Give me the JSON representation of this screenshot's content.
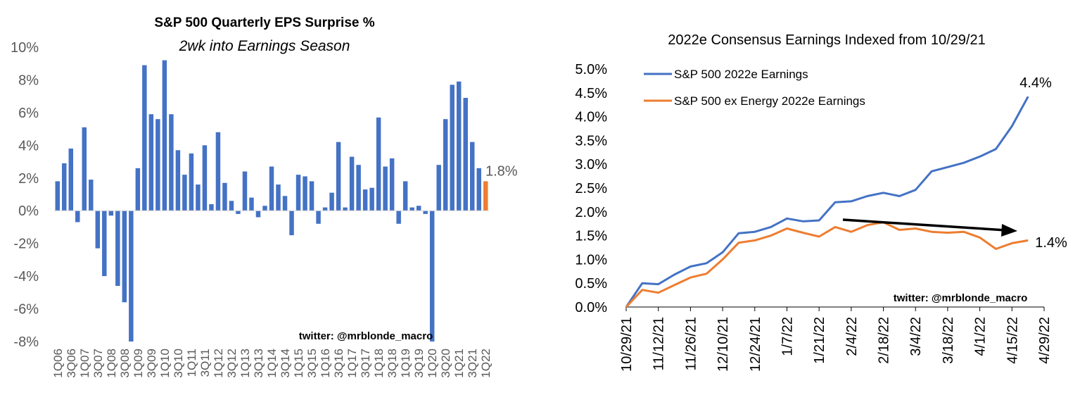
{
  "chart_data": [
    {
      "type": "bar",
      "title": "S&P 500 Quarterly EPS Surprise %",
      "subtitle": "2wk into Earnings Season",
      "watermark": "twitter: @mrblonde_macro",
      "ylim": [
        -8,
        10
      ],
      "yticks": [
        "10%",
        "8%",
        "6%",
        "4%",
        "2%",
        "0%",
        "-2%",
        "-4%",
        "-6%",
        "-8%"
      ],
      "categories": [
        "1Q06",
        "2Q06",
        "3Q06",
        "4Q06",
        "1Q07",
        "2Q07",
        "3Q07",
        "4Q07",
        "1Q08",
        "2Q08",
        "3Q08",
        "4Q08",
        "1Q09",
        "2Q09",
        "3Q09",
        "4Q09",
        "1Q10",
        "2Q10",
        "3Q10",
        "4Q10",
        "1Q11",
        "2Q11",
        "3Q11",
        "4Q11",
        "1Q12",
        "2Q12",
        "3Q12",
        "4Q12",
        "1Q13",
        "2Q13",
        "3Q13",
        "4Q13",
        "1Q14",
        "2Q14",
        "3Q14",
        "4Q14",
        "1Q15",
        "2Q15",
        "3Q15",
        "4Q15",
        "1Q16",
        "2Q16",
        "3Q16",
        "4Q16",
        "1Q17",
        "2Q17",
        "3Q17",
        "4Q17",
        "1Q18",
        "2Q18",
        "3Q18",
        "4Q18",
        "1Q19",
        "2Q19",
        "3Q19",
        "4Q19",
        "1Q20",
        "2Q20",
        "3Q20",
        "4Q20",
        "1Q21",
        "2Q21",
        "3Q21",
        "4Q21",
        "1Q22"
      ],
      "values": [
        1.8,
        2.9,
        3.8,
        -0.7,
        5.1,
        1.9,
        -2.3,
        -4.0,
        -0.3,
        -4.6,
        -5.6,
        -8.0,
        2.6,
        8.9,
        5.9,
        5.6,
        9.2,
        5.9,
        3.7,
        2.2,
        3.5,
        1.6,
        4.0,
        0.4,
        4.8,
        1.7,
        0.6,
        -0.2,
        2.4,
        0.8,
        -0.4,
        0.3,
        2.7,
        1.6,
        0.9,
        -1.5,
        2.2,
        2.1,
        1.8,
        -0.8,
        0.2,
        1.1,
        4.2,
        0.2,
        3.3,
        2.8,
        1.3,
        1.4,
        5.7,
        2.7,
        3.2,
        -0.8,
        1.8,
        0.2,
        0.3,
        -0.2,
        -8.0,
        2.8,
        5.6,
        7.7,
        7.9,
        6.9,
        4.2,
        2.6,
        1.8
      ],
      "colors": {
        "bar": "#4472C4",
        "highlight": "#ED7D31"
      },
      "last_label": "1.8%",
      "xtick_labels": [
        "1Q06",
        "3Q06",
        "1Q07",
        "3Q07",
        "1Q08",
        "3Q08",
        "1Q09",
        "3Q09",
        "1Q10",
        "3Q10",
        "1Q11",
        "3Q11",
        "1Q12",
        "3Q12",
        "1Q13",
        "3Q13",
        "1Q14",
        "3Q14",
        "1Q15",
        "3Q15",
        "1Q16",
        "3Q16",
        "1Q17",
        "3Q17",
        "1Q18",
        "3Q18",
        "1Q19",
        "3Q19",
        "1Q20",
        "3Q20",
        "1Q21",
        "3Q21",
        "1Q22"
      ]
    },
    {
      "type": "line",
      "title": "2022e Consensus Earnings Indexed from 10/29/21",
      "watermark": "twitter: @mrblonde_macro",
      "ylim": [
        0,
        5
      ],
      "yticks": [
        "5.0%",
        "4.5%",
        "4.0%",
        "3.5%",
        "3.0%",
        "2.5%",
        "2.0%",
        "1.5%",
        "1.0%",
        "0.5%",
        "0.0%"
      ],
      "xlim": [
        "10/29/21",
        "4/29/22"
      ],
      "x_tick_labels": [
        "10/29/21",
        "11/12/21",
        "11/26/21",
        "12/10/21",
        "12/24/21",
        "1/7/22",
        "1/21/22",
        "2/4/22",
        "2/18/22",
        "3/4/22",
        "3/18/22",
        "4/1/22",
        "4/15/22",
        "4/29/22"
      ],
      "x": [
        "10/29/21",
        "11/5/21",
        "11/12/21",
        "11/19/21",
        "11/26/21",
        "12/3/21",
        "12/10/21",
        "12/17/21",
        "12/24/21",
        "12/31/21",
        "1/7/22",
        "1/14/22",
        "1/21/22",
        "1/28/22",
        "2/4/22",
        "2/11/22",
        "2/18/22",
        "2/25/22",
        "3/4/22",
        "3/11/22",
        "3/18/22",
        "3/25/22",
        "4/1/22",
        "4/8/22",
        "4/15/22",
        "4/22/22"
      ],
      "series": [
        {
          "name": "S&P 500 2022e Earnings",
          "color": "#4472C4",
          "values": [
            0.0,
            0.5,
            0.48,
            0.68,
            0.85,
            0.92,
            1.15,
            1.55,
            1.58,
            1.68,
            1.86,
            1.8,
            1.82,
            2.2,
            2.22,
            2.33,
            2.4,
            2.33,
            2.46,
            2.85,
            2.94,
            3.03,
            3.16,
            3.32,
            3.8,
            4.42
          ]
        },
        {
          "name": "S&P 500 ex Energy 2022e Earnings",
          "color": "#ED7D31",
          "values": [
            0.0,
            0.36,
            0.3,
            0.46,
            0.62,
            0.7,
            1.0,
            1.35,
            1.4,
            1.5,
            1.65,
            1.56,
            1.48,
            1.68,
            1.58,
            1.72,
            1.78,
            1.62,
            1.65,
            1.58,
            1.56,
            1.58,
            1.46,
            1.22,
            1.34,
            1.4
          ]
        }
      ],
      "end_labels": [
        "4.4%",
        "1.4%"
      ],
      "annotation": "downward-arrow"
    }
  ]
}
